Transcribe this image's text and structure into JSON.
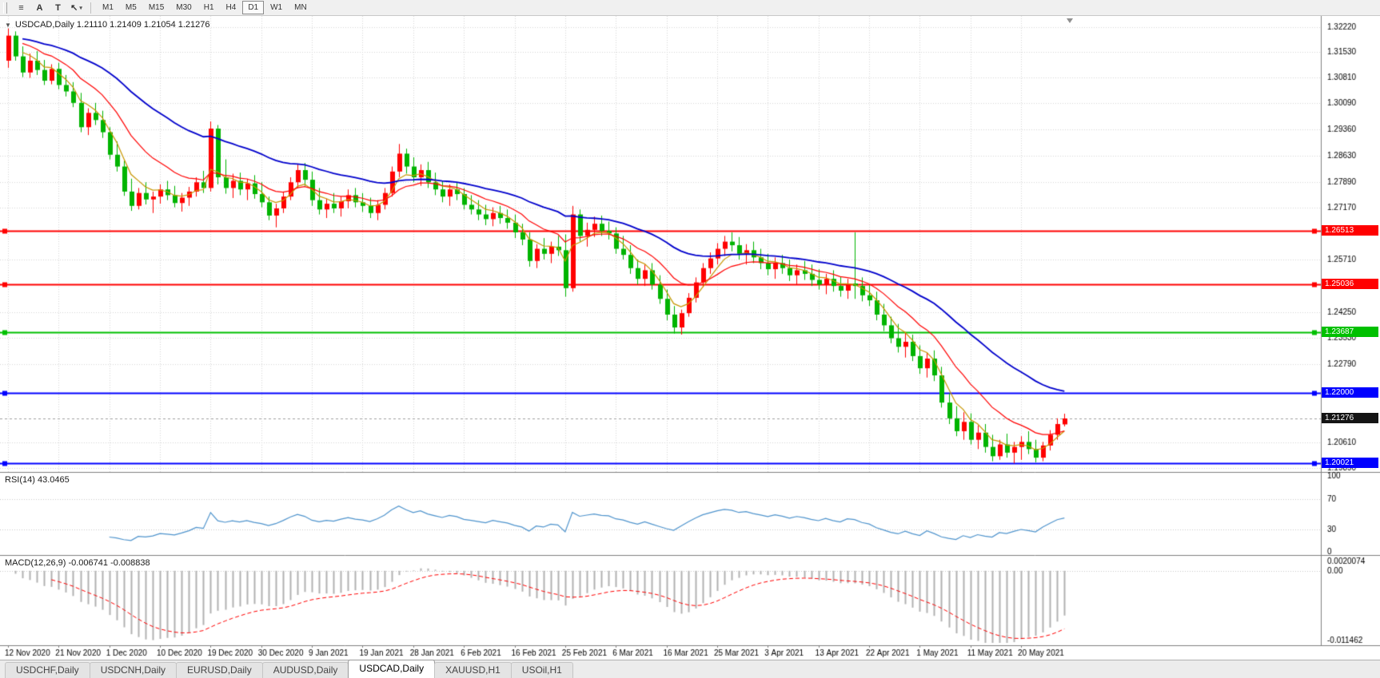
{
  "window": {
    "toolbar": {
      "tools": [
        {
          "id": "chart-menu",
          "glyph": "≡"
        },
        {
          "id": "arrow-tool",
          "glyph": "A"
        },
        {
          "id": "text-tool",
          "glyph": "T"
        },
        {
          "id": "cursor-tool",
          "glyph": "↖",
          "caret": "▾"
        }
      ],
      "timeframes": [
        "M1",
        "M5",
        "M15",
        "M30",
        "H1",
        "H4",
        "D1",
        "W1",
        "MN"
      ],
      "active_timeframe": "D1"
    },
    "tabs": [
      "USDCHF,Daily",
      "USDCNH,Daily",
      "EURUSD,Daily",
      "AUDUSD,Daily",
      "USDCAD,Daily",
      "XAUUSD,H1",
      "USOil,H1"
    ],
    "active_tab": "USDCAD,Daily"
  },
  "chart": {
    "symbol_label": "USDCAD,Daily 1.21110 1.21409 1.21054 1.21276",
    "ohlc_display": {
      "open": "1.21110",
      "high": "1.21409",
      "low": "1.21054",
      "close": "1.21276"
    },
    "current_price": "1.21276",
    "price_axis_labels": [
      "1.32220",
      "1.31530",
      "1.30810",
      "1.30090",
      "1.29360",
      "1.28630",
      "1.27890",
      "1.27170",
      "1.25710",
      "1.24250",
      "1.23530",
      "1.22790",
      "1.20610",
      "1.19890"
    ],
    "levels": [
      {
        "value": 1.26513,
        "label": "1.26513",
        "color": "#FF0000"
      },
      {
        "value": 1.25036,
        "label": "1.25036",
        "color": "#FF0000"
      },
      {
        "value": 1.23687,
        "label": "1.23687",
        "color": "#00C000"
      },
      {
        "value": 1.22,
        "label": "1.22000",
        "color": "#0000FF"
      },
      {
        "value": 1.20021,
        "label": "1.20021",
        "color": "#0000FF"
      }
    ],
    "colors": {
      "up": "#FF0000",
      "down": "#00B400",
      "ma_fast": "#C89600",
      "ma_mid": "#FF0000",
      "ma_slow": "#0000CC",
      "rsi": "#4F94CD",
      "macd_hist": "#B2B2B2",
      "macd_signal": "#FF0000",
      "grid": "#D6D6D6"
    }
  },
  "rsi": {
    "label": "RSI(14) 43.0465",
    "value": "43.0465",
    "period": 14,
    "axis_labels": [
      "100",
      "70",
      "30",
      "0"
    ],
    "levels": [
      70,
      30
    ]
  },
  "macd": {
    "label": "MACD(12,26,9) -0.006741 -0.008838",
    "fast": 12,
    "slow": 26,
    "signal": 9,
    "axis_labels": [
      "0.0020074",
      "0.00",
      "-0.011462"
    ],
    "max": 0.0020074,
    "min": -0.011462
  },
  "chart_data": {
    "type": "candlestick",
    "symbol": "USDCAD",
    "timeframe": "Daily",
    "title": "USDCAD,Daily",
    "ylim": [
      1.1978,
      1.3253
    ],
    "bars_per_label": 7,
    "x_labels": [
      "12 Nov 2020",
      "21 Nov 2020",
      "1 Dec 2020",
      "10 Dec 2020",
      "19 Dec 2020",
      "30 Dec 2020",
      "9 Jan 2021",
      "19 Jan 2021",
      "28 Jan 2021",
      "6 Feb 2021",
      "16 Feb 2021",
      "25 Feb 2021",
      "6 Mar 2021",
      "16 Mar 2021",
      "25 Mar 2021",
      "3 Apr 2021",
      "13 Apr 2021",
      "22 Apr 2021",
      "1 May 2021",
      "11 May 2021",
      "20 May 2021"
    ],
    "moving_averages": [
      {
        "period": 5,
        "type": "ema",
        "color_key": "ma_fast"
      },
      {
        "period": 13,
        "type": "ema",
        "color_key": "ma_mid"
      },
      {
        "period": 34,
        "type": "ema",
        "color_key": "ma_slow"
      }
    ],
    "ohlc": [
      [
        1.3128,
        1.3218,
        1.3108,
        1.3198
      ],
      [
        1.3198,
        1.321,
        1.3128,
        1.314
      ],
      [
        1.314,
        1.3168,
        1.3082,
        1.3095
      ],
      [
        1.3095,
        1.3148,
        1.308,
        1.3128
      ],
      [
        1.3128,
        1.3155,
        1.3088,
        1.3102
      ],
      [
        1.3102,
        1.313,
        1.306,
        1.3072
      ],
      [
        1.3072,
        1.3118,
        1.3062,
        1.3105
      ],
      [
        1.3105,
        1.3122,
        1.3048,
        1.306
      ],
      [
        1.306,
        1.3088,
        1.3028,
        1.3042
      ],
      [
        1.3042,
        1.3068,
        1.2998,
        1.301
      ],
      [
        1.301,
        1.3038,
        1.2928,
        1.2942
      ],
      [
        1.2942,
        1.2995,
        1.292,
        1.2982
      ],
      [
        1.2982,
        1.301,
        1.2948,
        1.2962
      ],
      [
        1.2962,
        1.2988,
        1.2912,
        1.2928
      ],
      [
        1.2928,
        1.2942,
        1.2852,
        1.2865
      ],
      [
        1.2865,
        1.2902,
        1.2818,
        1.2832
      ],
      [
        1.2832,
        1.2848,
        1.275,
        1.2762
      ],
      [
        1.2762,
        1.2798,
        1.2708,
        1.2722
      ],
      [
        1.2722,
        1.2772,
        1.2712,
        1.2758
      ],
      [
        1.2758,
        1.2788,
        1.2726,
        1.274
      ],
      [
        1.274,
        1.2762,
        1.2702,
        1.2748
      ],
      [
        1.2748,
        1.2782,
        1.2728,
        1.2768
      ],
      [
        1.2768,
        1.2792,
        1.2738,
        1.2752
      ],
      [
        1.2752,
        1.2778,
        1.2718,
        1.273
      ],
      [
        1.273,
        1.2758,
        1.2706,
        1.2745
      ],
      [
        1.2745,
        1.2775,
        1.2722,
        1.2762
      ],
      [
        1.2762,
        1.2802,
        1.2748,
        1.2788
      ],
      [
        1.2788,
        1.282,
        1.2758,
        1.2772
      ],
      [
        1.2772,
        1.2958,
        1.2762,
        1.2938
      ],
      [
        1.2938,
        1.2948,
        1.2782,
        1.2802
      ],
      [
        1.2802,
        1.2852,
        1.2756,
        1.2772
      ],
      [
        1.2772,
        1.2812,
        1.2744,
        1.2792
      ],
      [
        1.2792,
        1.2815,
        1.2752,
        1.2768
      ],
      [
        1.2768,
        1.2798,
        1.2738,
        1.2785
      ],
      [
        1.2785,
        1.2808,
        1.2742,
        1.2755
      ],
      [
        1.2755,
        1.2788,
        1.2718,
        1.2732
      ],
      [
        1.2732,
        1.2748,
        1.2682,
        1.2695
      ],
      [
        1.2695,
        1.2728,
        1.2662,
        1.2715
      ],
      [
        1.2715,
        1.2762,
        1.2702,
        1.2748
      ],
      [
        1.2748,
        1.2802,
        1.2738,
        1.2788
      ],
      [
        1.2788,
        1.2838,
        1.2772,
        1.2822
      ],
      [
        1.2822,
        1.2842,
        1.2778,
        1.2795
      ],
      [
        1.2795,
        1.2818,
        1.2722,
        1.2738
      ],
      [
        1.2738,
        1.2772,
        1.2698,
        1.2712
      ],
      [
        1.2712,
        1.2742,
        1.2688,
        1.2728
      ],
      [
        1.2728,
        1.2758,
        1.2702,
        1.2715
      ],
      [
        1.2715,
        1.2748,
        1.2692,
        1.2735
      ],
      [
        1.2735,
        1.2768,
        1.2715,
        1.2752
      ],
      [
        1.2752,
        1.2772,
        1.2718,
        1.2732
      ],
      [
        1.2732,
        1.2758,
        1.2705,
        1.2722
      ],
      [
        1.2722,
        1.2745,
        1.2688,
        1.2702
      ],
      [
        1.2702,
        1.2738,
        1.2682,
        1.2725
      ],
      [
        1.2725,
        1.2772,
        1.2712,
        1.2758
      ],
      [
        1.2758,
        1.2832,
        1.2748,
        1.2818
      ],
      [
        1.2818,
        1.2895,
        1.2802,
        1.2868
      ],
      [
        1.2868,
        1.2882,
        1.2812,
        1.2832
      ],
      [
        1.2832,
        1.2858,
        1.2788,
        1.2802
      ],
      [
        1.2802,
        1.2838,
        1.2778,
        1.2822
      ],
      [
        1.2822,
        1.2845,
        1.2772,
        1.2788
      ],
      [
        1.2788,
        1.2815,
        1.2752,
        1.2768
      ],
      [
        1.2768,
        1.2792,
        1.2732,
        1.2748
      ],
      [
        1.2748,
        1.2782,
        1.2722,
        1.2768
      ],
      [
        1.2768,
        1.2788,
        1.2738,
        1.2755
      ],
      [
        1.2755,
        1.2772,
        1.2712,
        1.2725
      ],
      [
        1.2725,
        1.2752,
        1.2698,
        1.2712
      ],
      [
        1.2712,
        1.2738,
        1.2682,
        1.2698
      ],
      [
        1.2698,
        1.2725,
        1.2668,
        1.2685
      ],
      [
        1.2685,
        1.2718,
        1.2665,
        1.2702
      ],
      [
        1.2702,
        1.2722,
        1.2672,
        1.2688
      ],
      [
        1.2688,
        1.2712,
        1.2658,
        1.2675
      ],
      [
        1.2675,
        1.2698,
        1.2632,
        1.2648
      ],
      [
        1.2648,
        1.2672,
        1.2612,
        1.2628
      ],
      [
        1.2628,
        1.2648,
        1.2552,
        1.2568
      ],
      [
        1.2568,
        1.2615,
        1.2548,
        1.2602
      ],
      [
        1.2602,
        1.2632,
        1.2572,
        1.2588
      ],
      [
        1.2588,
        1.2622,
        1.2562,
        1.2608
      ],
      [
        1.2608,
        1.2638,
        1.2582,
        1.2598
      ],
      [
        1.2598,
        1.2642,
        1.2468,
        1.2492
      ],
      [
        1.2492,
        1.2722,
        1.2482,
        1.2698
      ],
      [
        1.2698,
        1.2712,
        1.2622,
        1.2638
      ],
      [
        1.2638,
        1.2675,
        1.2608,
        1.2655
      ],
      [
        1.2655,
        1.2692,
        1.2635,
        1.2672
      ],
      [
        1.2672,
        1.2695,
        1.2638,
        1.2652
      ],
      [
        1.2652,
        1.2678,
        1.2628,
        1.2645
      ],
      [
        1.2645,
        1.2662,
        1.2588,
        1.2602
      ],
      [
        1.2602,
        1.2638,
        1.2572,
        1.2585
      ],
      [
        1.2585,
        1.2612,
        1.2532,
        1.2548
      ],
      [
        1.2548,
        1.2572,
        1.2502,
        1.2518
      ],
      [
        1.2518,
        1.2558,
        1.2498,
        1.2542
      ],
      [
        1.2542,
        1.2562,
        1.2488,
        1.2502
      ],
      [
        1.2502,
        1.2528,
        1.2448,
        1.2462
      ],
      [
        1.2462,
        1.2488,
        1.2402,
        1.2418
      ],
      [
        1.2418,
        1.2442,
        1.2365,
        1.2382
      ],
      [
        1.2382,
        1.2432,
        1.2362,
        1.2422
      ],
      [
        1.2422,
        1.2478,
        1.2412,
        1.2465
      ],
      [
        1.2465,
        1.2522,
        1.2452,
        1.2508
      ],
      [
        1.2508,
        1.2562,
        1.2495,
        1.2548
      ],
      [
        1.2548,
        1.2592,
        1.2532,
        1.2575
      ],
      [
        1.2575,
        1.2618,
        1.2558,
        1.2602
      ],
      [
        1.2602,
        1.2638,
        1.2582,
        1.2622
      ],
      [
        1.2622,
        1.2648,
        1.2595,
        1.2612
      ],
      [
        1.2612,
        1.2635,
        1.2572,
        1.2588
      ],
      [
        1.2588,
        1.2615,
        1.2558,
        1.2598
      ],
      [
        1.2598,
        1.2622,
        1.2562,
        1.2578
      ],
      [
        1.2578,
        1.2602,
        1.2545,
        1.2562
      ],
      [
        1.2562,
        1.2588,
        1.2528,
        1.2545
      ],
      [
        1.2545,
        1.2578,
        1.2518,
        1.2562
      ],
      [
        1.2562,
        1.2585,
        1.2532,
        1.2548
      ],
      [
        1.2548,
        1.2572,
        1.2512,
        1.2528
      ],
      [
        1.2528,
        1.2558,
        1.2502,
        1.2542
      ],
      [
        1.2542,
        1.2568,
        1.2515,
        1.2532
      ],
      [
        1.2532,
        1.2558,
        1.2498,
        1.2515
      ],
      [
        1.2515,
        1.2545,
        1.2488,
        1.2502
      ],
      [
        1.2502,
        1.2532,
        1.2475,
        1.2518
      ],
      [
        1.2518,
        1.2542,
        1.2482,
        1.2498
      ],
      [
        1.2498,
        1.2525,
        1.2468,
        1.2485
      ],
      [
        1.2485,
        1.2518,
        1.2462,
        1.2505
      ],
      [
        1.2505,
        1.2648,
        1.2462,
        1.2498
      ],
      [
        1.2498,
        1.2522,
        1.2455,
        1.2472
      ],
      [
        1.2472,
        1.2502,
        1.2442,
        1.2458
      ],
      [
        1.2458,
        1.2482,
        1.2402,
        1.2418
      ],
      [
        1.2418,
        1.2448,
        1.2372,
        1.2388
      ],
      [
        1.2388,
        1.2412,
        1.2338,
        1.2352
      ],
      [
        1.2352,
        1.2392,
        1.2312,
        1.2328
      ],
      [
        1.2328,
        1.2368,
        1.2298,
        1.2342
      ],
      [
        1.2342,
        1.2362,
        1.2288,
        1.2302
      ],
      [
        1.2302,
        1.2332,
        1.2252,
        1.2268
      ],
      [
        1.2268,
        1.2312,
        1.2242,
        1.2295
      ],
      [
        1.2295,
        1.2318,
        1.2232,
        1.2248
      ],
      [
        1.2248,
        1.2272,
        1.2158,
        1.2172
      ],
      [
        1.2172,
        1.2198,
        1.2112,
        1.2128
      ],
      [
        1.2128,
        1.2162,
        1.2078,
        1.2092
      ],
      [
        1.2092,
        1.2145,
        1.2068,
        1.2118
      ],
      [
        1.2118,
        1.2142,
        1.2055,
        1.2068
      ],
      [
        1.2068,
        1.2108,
        1.2042,
        1.2088
      ],
      [
        1.2088,
        1.2112,
        1.2032,
        1.2048
      ],
      [
        1.2048,
        1.2082,
        1.2008,
        1.2022
      ],
      [
        1.2022,
        1.2068,
        1.2012,
        1.2055
      ],
      [
        1.2055,
        1.2085,
        1.2018,
        1.2032
      ],
      [
        1.2032,
        1.2062,
        1.2002,
        1.2048
      ],
      [
        1.2048,
        1.2078,
        1.2012,
        1.2062
      ],
      [
        1.2062,
        1.2092,
        1.2028,
        1.2042
      ],
      [
        1.2042,
        1.2068,
        1.2005,
        1.2018
      ],
      [
        1.2018,
        1.2062,
        1.2008,
        1.2052
      ],
      [
        1.2052,
        1.2095,
        1.2038,
        1.2082
      ],
      [
        1.2082,
        1.2128,
        1.2068,
        1.2112
      ],
      [
        1.2111,
        1.21409,
        1.21054,
        1.21276
      ]
    ]
  }
}
